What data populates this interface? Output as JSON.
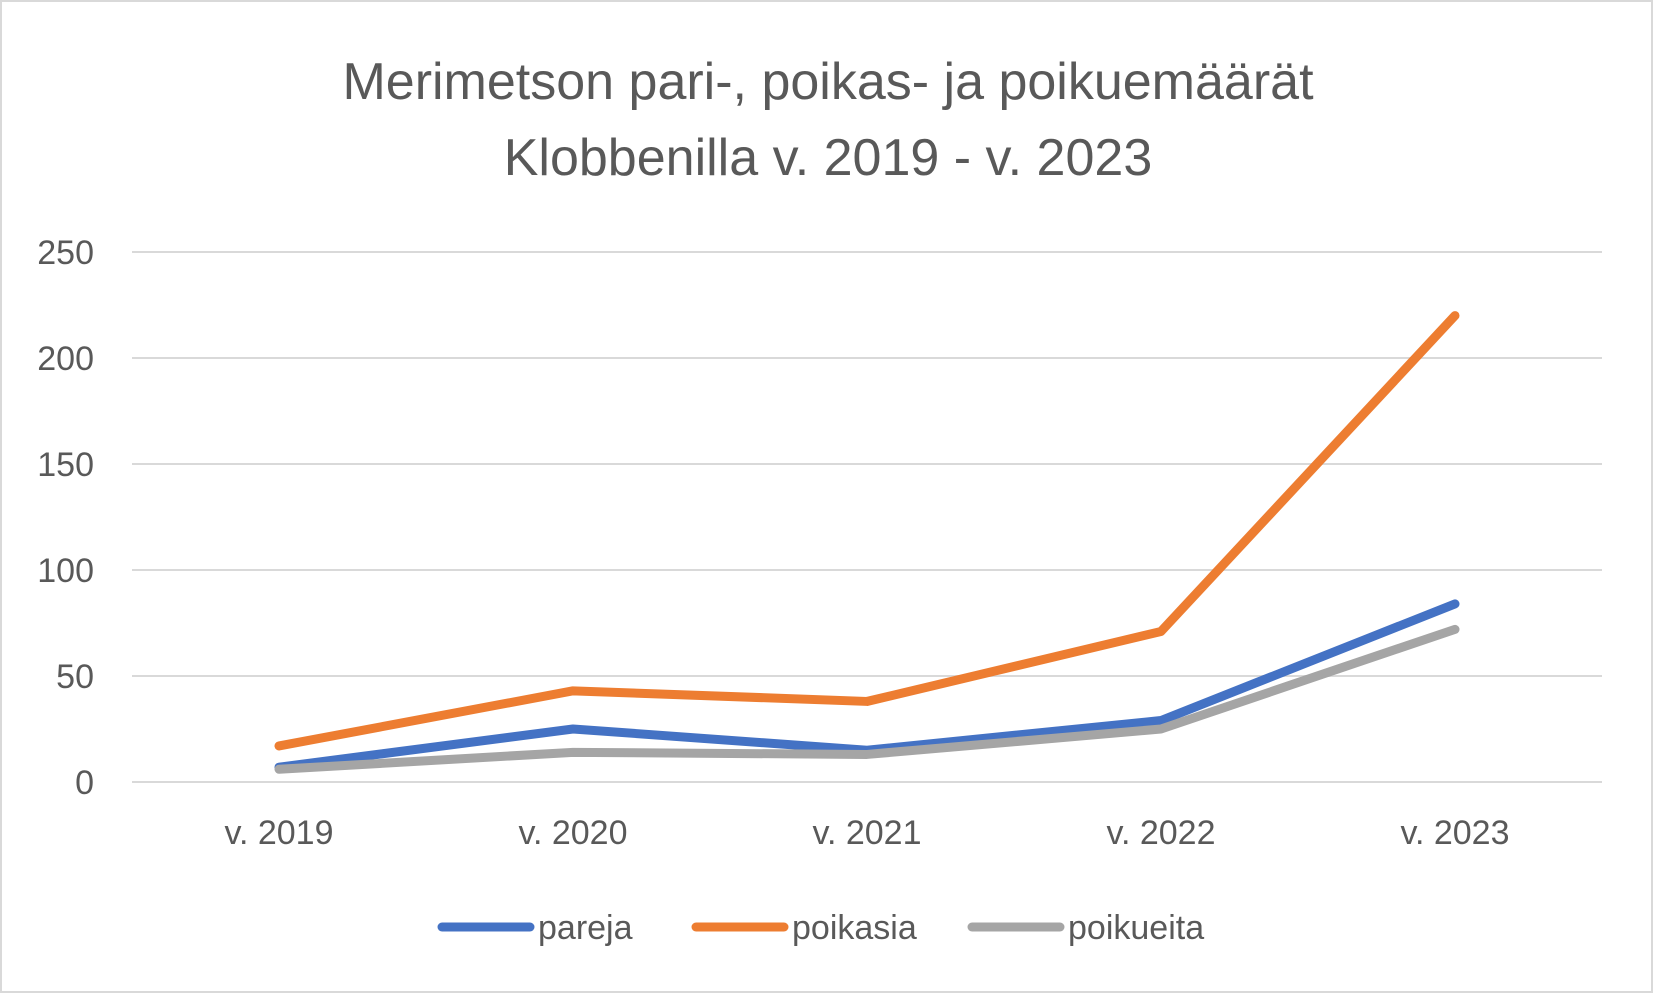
{
  "chart_data": {
    "type": "line",
    "title_lines": [
      "Merimetson pari-, poikas- ja poikuemäärät",
      "Klobbenilla v. 2019 - v. 2023"
    ],
    "categories": [
      "v. 2019",
      "v. 2020",
      "v. 2021",
      "v. 2022",
      "v. 2023"
    ],
    "series": [
      {
        "name": "pareja",
        "color": "#4472c4",
        "values": [
          7,
          25,
          15,
          29,
          84
        ]
      },
      {
        "name": "poikasia",
        "color": "#ed7d31",
        "values": [
          17,
          43,
          38,
          71,
          220
        ]
      },
      {
        "name": "poikueita",
        "color": "#a5a5a5",
        "values": [
          6,
          14,
          13,
          25,
          72
        ]
      }
    ],
    "ylim": [
      0,
      250
    ],
    "yticks": [
      "0",
      "50",
      "100",
      "150",
      "200",
      "250"
    ],
    "grid": true,
    "legend_position": "bottom"
  }
}
